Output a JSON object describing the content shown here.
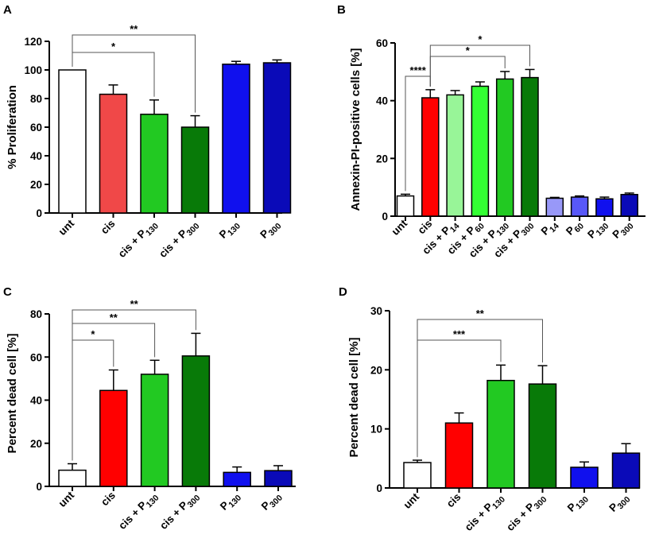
{
  "figure": {
    "panel_count": 4
  },
  "chart_data": [
    {
      "type": "bar",
      "panel": "A",
      "title": "",
      "xlabel": "",
      "ylabel": "% Proliferation",
      "ylim": [
        0,
        120
      ],
      "yticks": [
        0,
        20,
        40,
        60,
        80,
        100,
        120
      ],
      "categories": [
        {
          "main": "unt",
          "sub": ""
        },
        {
          "main": "cis",
          "sub": ""
        },
        {
          "main": "cis + P",
          "sub": "130"
        },
        {
          "main": "cis + P",
          "sub": "300"
        },
        {
          "main": "P",
          "sub": "130"
        },
        {
          "main": "P",
          "sub": "300"
        }
      ],
      "values": [
        100,
        83,
        69,
        60,
        104,
        105
      ],
      "errors": [
        0,
        6.5,
        10,
        8,
        2,
        2
      ],
      "colors": [
        "#ffffff",
        "#f04848",
        "#22c922",
        "#087a08",
        "#1010ee",
        "#0a0ab8"
      ],
      "significance": [
        {
          "from": 0,
          "to": 2,
          "label": "*"
        },
        {
          "from": 0,
          "to": 3,
          "label": "**"
        }
      ]
    },
    {
      "type": "bar",
      "panel": "B",
      "title": "",
      "xlabel": "",
      "ylabel": "Annexin-PI-positive cells [%]",
      "ylim": [
        0,
        60
      ],
      "yticks": [
        0,
        20,
        40,
        60
      ],
      "categories": [
        {
          "main": "unt",
          "sub": ""
        },
        {
          "main": "cis",
          "sub": ""
        },
        {
          "main": "cis + P",
          "sub": "14"
        },
        {
          "main": "cis + P",
          "sub": "60"
        },
        {
          "main": "cis + P",
          "sub": "130"
        },
        {
          "main": "cis + P",
          "sub": "300"
        },
        {
          "main": "P",
          "sub": "14"
        },
        {
          "main": "P",
          "sub": "60"
        },
        {
          "main": "P",
          "sub": "130"
        },
        {
          "main": "P",
          "sub": "300"
        }
      ],
      "values": [
        7,
        41,
        42,
        45,
        47.5,
        48,
        6.2,
        6.6,
        6,
        7.5
      ],
      "errors": [
        0.6,
        2.8,
        1.5,
        1.5,
        2.6,
        2.8,
        0.3,
        0.4,
        0.6,
        0.5
      ],
      "colors": [
        "#ffffff",
        "#ff0000",
        "#98f598",
        "#33ff33",
        "#22c922",
        "#087a08",
        "#9898f8",
        "#5858f8",
        "#1010ee",
        "#0a0ab8"
      ],
      "significance": [
        {
          "from": 0,
          "to": 1,
          "label": "****"
        },
        {
          "from": 1,
          "to": 4,
          "label": "*"
        },
        {
          "from": 1,
          "to": 5,
          "label": "*"
        }
      ]
    },
    {
      "type": "bar",
      "panel": "C",
      "title": "",
      "xlabel": "",
      "ylabel": "Percent dead cell [%]",
      "ylim": [
        0,
        80
      ],
      "yticks": [
        0,
        20,
        40,
        60,
        80
      ],
      "categories": [
        {
          "main": "unt",
          "sub": ""
        },
        {
          "main": "cis",
          "sub": ""
        },
        {
          "main": "cis + P",
          "sub": "130"
        },
        {
          "main": "cis + P",
          "sub": "300"
        },
        {
          "main": "P",
          "sub": "130"
        },
        {
          "main": "P",
          "sub": "300"
        }
      ],
      "values": [
        7.5,
        44.5,
        52,
        60.5,
        6.5,
        7.3
      ],
      "errors": [
        3,
        9.5,
        6.5,
        10.5,
        2.5,
        2.3
      ],
      "colors": [
        "#ffffff",
        "#ff0000",
        "#22c922",
        "#087a08",
        "#1010ee",
        "#0a0ab8"
      ],
      "significance": [
        {
          "from": 0,
          "to": 1,
          "label": "*"
        },
        {
          "from": 0,
          "to": 2,
          "label": "**"
        },
        {
          "from": 0,
          "to": 3,
          "label": "**"
        }
      ]
    },
    {
      "type": "bar",
      "panel": "D",
      "title": "",
      "xlabel": "",
      "ylabel": "Percent dead cell [%]",
      "ylim": [
        0,
        30
      ],
      "yticks": [
        0,
        10,
        20,
        30
      ],
      "categories": [
        {
          "main": "unt",
          "sub": ""
        },
        {
          "main": "cis",
          "sub": ""
        },
        {
          "main": "cis + P",
          "sub": "130"
        },
        {
          "main": "cis + P",
          "sub": "300"
        },
        {
          "main": "P",
          "sub": "130"
        },
        {
          "main": "P",
          "sub": "300"
        }
      ],
      "values": [
        4.3,
        11,
        18.2,
        17.6,
        3.5,
        5.9
      ],
      "errors": [
        0.4,
        1.7,
        2.6,
        3.1,
        0.9,
        1.6
      ],
      "colors": [
        "#ffffff",
        "#ff0000",
        "#22c922",
        "#087a08",
        "#1010ee",
        "#0a0ab8"
      ],
      "significance": [
        {
          "from": 0,
          "to": 2,
          "label": "***"
        },
        {
          "from": 0,
          "to": 3,
          "label": "**"
        }
      ]
    }
  ]
}
